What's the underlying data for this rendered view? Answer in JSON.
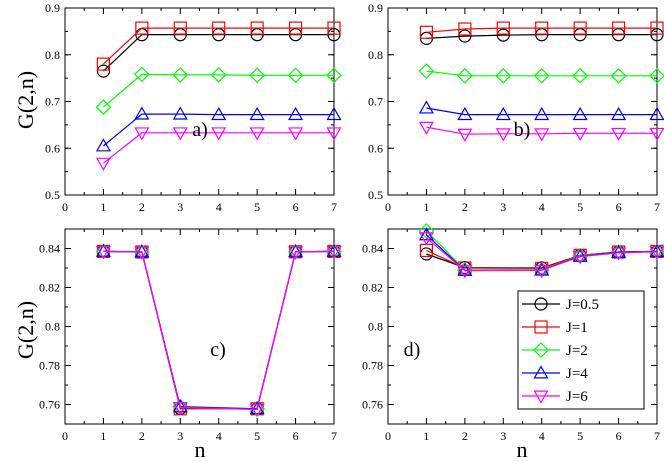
{
  "figure": {
    "ylabel": "G(2,n)",
    "xlabel": "n"
  },
  "chart_data": [
    {
      "type": "line",
      "panel_label": "a)",
      "xlabel": "",
      "ylabel": "G(2,n)",
      "xlim": [
        0,
        7
      ],
      "ylim": [
        0.5,
        0.9
      ],
      "xticks": [
        "0",
        "1",
        "2",
        "3",
        "4",
        "5",
        "6",
        "7"
      ],
      "yticks": [
        "0.5",
        "0.6",
        "0.7",
        "0.8",
        "0.9"
      ],
      "x": [
        1,
        2,
        3,
        4,
        5,
        6,
        7
      ],
      "series": [
        {
          "name": "J=0.5",
          "color": "#000000",
          "marker": "circle",
          "values": [
            0.765,
            0.843,
            0.843,
            0.843,
            0.843,
            0.843,
            0.843
          ]
        },
        {
          "name": "J=1",
          "color": "#ff0000",
          "marker": "square",
          "values": [
            0.78,
            0.857,
            0.857,
            0.857,
            0.857,
            0.857,
            0.857
          ]
        },
        {
          "name": "J=2",
          "color": "#00ff00",
          "marker": "diamond",
          "values": [
            0.688,
            0.758,
            0.757,
            0.757,
            0.756,
            0.756,
            0.756
          ]
        },
        {
          "name": "J=4",
          "color": "#0000ff",
          "marker": "triangle-up",
          "values": [
            0.605,
            0.673,
            0.673,
            0.672,
            0.672,
            0.672,
            0.672
          ]
        },
        {
          "name": "J=6",
          "color": "#ff00ff",
          "marker": "triangle-down",
          "values": [
            0.568,
            0.633,
            0.633,
            0.633,
            0.633,
            0.633,
            0.633
          ]
        }
      ]
    },
    {
      "type": "line",
      "panel_label": "b)",
      "xlabel": "",
      "ylabel": "",
      "xlim": [
        0,
        7
      ],
      "ylim": [
        0.5,
        0.9
      ],
      "xticks": [
        "0",
        "1",
        "2",
        "3",
        "4",
        "5",
        "6",
        "7"
      ],
      "yticks": [
        "0.5",
        "0.6",
        "0.7",
        "0.8",
        "0.9"
      ],
      "x": [
        1,
        2,
        3,
        4,
        5,
        6,
        7
      ],
      "series": [
        {
          "name": "J=0.5",
          "color": "#000000",
          "marker": "circle",
          "values": [
            0.835,
            0.84,
            0.842,
            0.843,
            0.843,
            0.843,
            0.843
          ]
        },
        {
          "name": "J=1",
          "color": "#ff0000",
          "marker": "square",
          "values": [
            0.848,
            0.855,
            0.857,
            0.857,
            0.857,
            0.857,
            0.857
          ]
        },
        {
          "name": "J=2",
          "color": "#00ff00",
          "marker": "diamond",
          "values": [
            0.765,
            0.755,
            0.755,
            0.755,
            0.755,
            0.755,
            0.755
          ]
        },
        {
          "name": "J=4",
          "color": "#0000ff",
          "marker": "triangle-up",
          "values": [
            0.686,
            0.672,
            0.672,
            0.672,
            0.672,
            0.672,
            0.672
          ]
        },
        {
          "name": "J=6",
          "color": "#ff00ff",
          "marker": "triangle-down",
          "values": [
            0.645,
            0.63,
            0.631,
            0.631,
            0.632,
            0.632,
            0.632
          ]
        }
      ]
    },
    {
      "type": "line",
      "panel_label": "c)",
      "xlabel": "n",
      "ylabel": "G(2,n)",
      "xlim": [
        0,
        7
      ],
      "ylim": [
        0.75,
        0.85
      ],
      "xticks": [
        "0",
        "1",
        "2",
        "3",
        "4",
        "5",
        "6",
        "7"
      ],
      "yticks": [
        "0.76",
        "0.78",
        "0.8",
        "0.82",
        "0.84"
      ],
      "x": [
        1,
        2,
        3,
        5,
        6,
        7
      ],
      "series": [
        {
          "name": "J=0.5",
          "color": "#000000",
          "marker": "circle",
          "values": [
            0.8385,
            0.8382,
            0.758,
            0.7578,
            0.8383,
            0.8385
          ]
        },
        {
          "name": "J=1",
          "color": "#ff0000",
          "marker": "square",
          "values": [
            0.8385,
            0.8382,
            0.7578,
            0.7578,
            0.8383,
            0.8385
          ]
        },
        {
          "name": "J=2",
          "color": "#00ff00",
          "marker": "diamond",
          "values": [
            0.8385,
            0.8382,
            0.759,
            0.7578,
            0.8383,
            0.8385
          ]
        },
        {
          "name": "J=4",
          "color": "#0000ff",
          "marker": "triangle-up",
          "values": [
            0.8385,
            0.8382,
            0.7588,
            0.7578,
            0.8383,
            0.8385
          ]
        },
        {
          "name": "J=6",
          "color": "#ff00ff",
          "marker": "triangle-down",
          "values": [
            0.8385,
            0.8382,
            0.7585,
            0.7575,
            0.8383,
            0.8385
          ]
        }
      ]
    },
    {
      "type": "line",
      "panel_label": "d)",
      "xlabel": "n",
      "ylabel": "",
      "xlim": [
        0,
        7
      ],
      "ylim": [
        0.75,
        0.85
      ],
      "xticks": [
        "0",
        "1",
        "2",
        "3",
        "4",
        "5",
        "6",
        "7"
      ],
      "yticks": [
        "0.76",
        "0.78",
        "0.8",
        "0.82",
        "0.84"
      ],
      "x": [
        1,
        2,
        4,
        5,
        6,
        7
      ],
      "legend": "lower-right",
      "series": [
        {
          "name": "J=0.5",
          "color": "#000000",
          "marker": "circle",
          "values": [
            0.8372,
            0.8302,
            0.83,
            0.8365,
            0.8382,
            0.8385
          ]
        },
        {
          "name": "J=1",
          "color": "#ff0000",
          "marker": "square",
          "values": [
            0.839,
            0.83,
            0.8298,
            0.8365,
            0.8382,
            0.8385
          ]
        },
        {
          "name": "J=2",
          "color": "#00ff00",
          "marker": "diamond",
          "values": [
            0.849,
            0.829,
            0.829,
            0.8362,
            0.838,
            0.8384
          ]
        },
        {
          "name": "J=4",
          "color": "#0000ff",
          "marker": "triangle-up",
          "values": [
            0.847,
            0.8287,
            0.8289,
            0.836,
            0.838,
            0.8384
          ]
        },
        {
          "name": "J=6",
          "color": "#ff00ff",
          "marker": "triangle-down",
          "values": [
            0.8455,
            0.8286,
            0.8288,
            0.8358,
            0.8378,
            0.8383
          ]
        }
      ]
    }
  ]
}
